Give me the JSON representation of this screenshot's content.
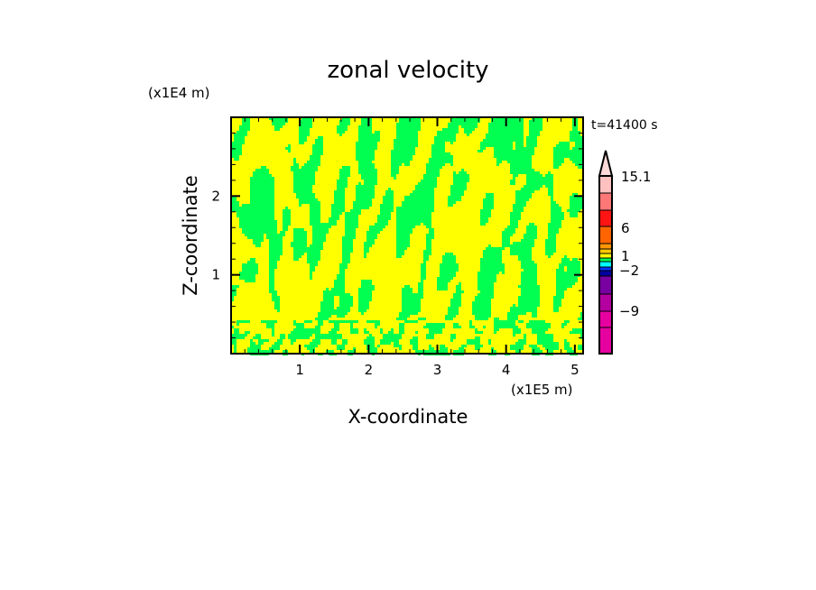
{
  "chart_data": {
    "type": "heatmap",
    "title": "zonal velocity",
    "xlabel": "X-coordinate",
    "ylabel": "Z-coordinate",
    "x_unit": "(x1E5 m)",
    "y_unit": "(x1E4 m)",
    "time_label": "t=41400 s",
    "xlim": [
      0,
      5.12
    ],
    "ylim": [
      0,
      3.0
    ],
    "x_ticks": [
      "1",
      "2",
      "3",
      "4",
      "5"
    ],
    "y_ticks": [
      "1",
      "2"
    ],
    "dominant_levels": [
      "yellow band (near 0 to 1)",
      "green band (near 0 to -1)"
    ],
    "colorbar": {
      "labels": [
        "15.1",
        "6",
        "1",
        "-2",
        "-9"
      ],
      "colors": [
        "#FFD8D8",
        "#FFC0C0",
        "#FF7878",
        "#FF1414",
        "#FF6400",
        "#FF9600",
        "#FFC800",
        "#FFFF00",
        "#00FF50",
        "#00FFFF",
        "#0032FF",
        "#0000A0",
        "#7800A0",
        "#B400A0",
        "#E600A0"
      ],
      "extend": "max"
    }
  }
}
